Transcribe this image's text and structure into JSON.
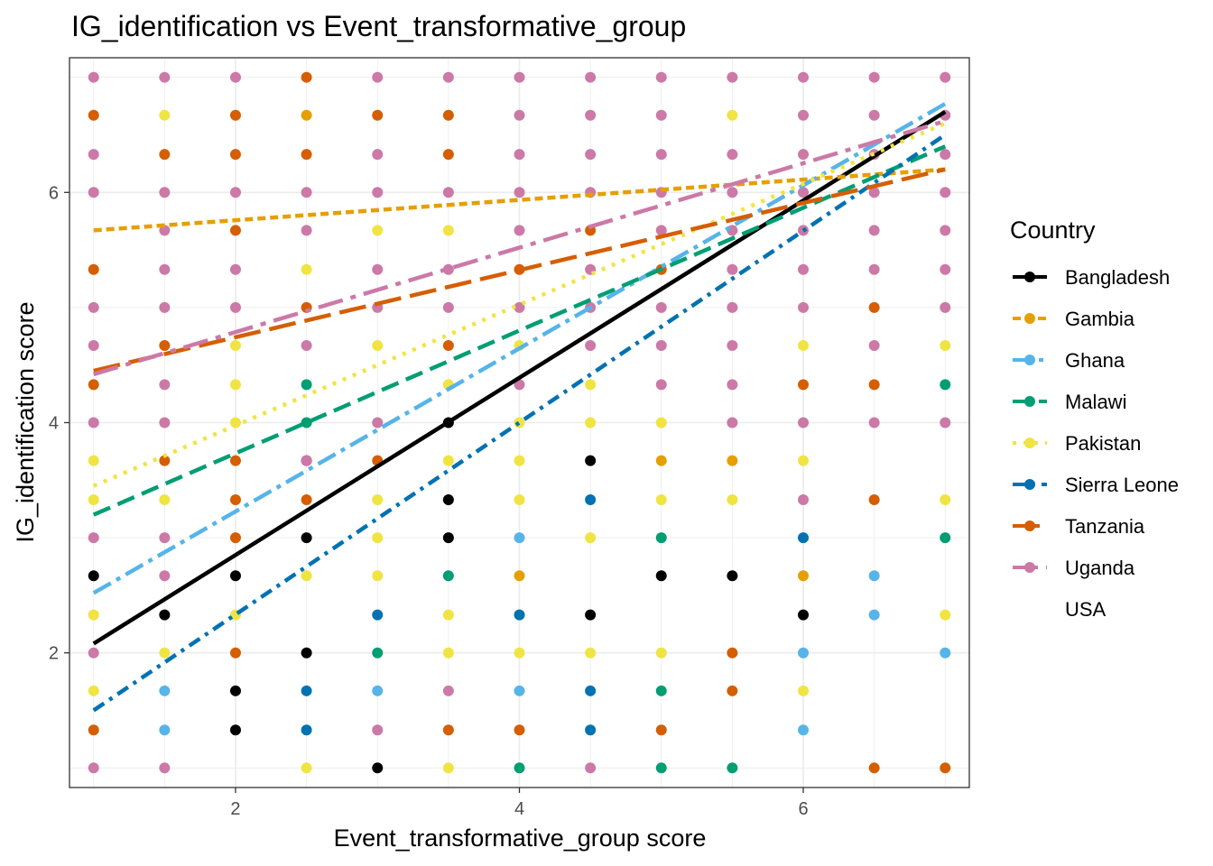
{
  "chart_data": {
    "type": "scatter",
    "title": "IG_identification vs Event_transformative_group",
    "xlabel": "Event_transformative_group score",
    "ylabel": "IG_identification score",
    "xlim": [
      0.83,
      7.17
    ],
    "ylim": [
      0.83,
      7.17
    ],
    "x_ticks": [
      2,
      4,
      6
    ],
    "y_ticks": [
      2,
      4,
      6
    ],
    "grid": true,
    "legend": {
      "title": "Country",
      "position": "right"
    },
    "series": [
      {
        "name": "Bangladesh",
        "color": "#000000",
        "dash": "solid",
        "fit": [
          [
            1,
            2.08
          ],
          [
            7,
            6.7
          ]
        ],
        "points": [
          [
            1,
            2.67
          ],
          [
            1.5,
            2.33
          ],
          [
            2,
            2.67
          ],
          [
            2,
            1.67
          ],
          [
            2,
            1.33
          ],
          [
            2.5,
            3.67
          ],
          [
            2.5,
            3
          ],
          [
            2.5,
            2
          ],
          [
            3,
            1
          ],
          [
            3.5,
            4
          ],
          [
            3.5,
            3.33
          ],
          [
            3.5,
            3
          ],
          [
            4.5,
            3.67
          ],
          [
            4.5,
            2.33
          ],
          [
            5,
            2.67
          ],
          [
            5.5,
            2.67
          ],
          [
            6,
            2.33
          ]
        ]
      },
      {
        "name": "Gambia",
        "color": "#E69F00",
        "dash": "short",
        "fit": [
          [
            1,
            5.67
          ],
          [
            7,
            6.2
          ]
        ],
        "points": [
          [
            2.5,
            6.67
          ],
          [
            4,
            2.67
          ],
          [
            5,
            3.67
          ],
          [
            5.5,
            3.67
          ],
          [
            6,
            2.67
          ]
        ]
      },
      {
        "name": "Ghana",
        "color": "#56B4E9",
        "dash": "dashdot-long",
        "fit": [
          [
            1,
            2.52
          ],
          [
            7,
            6.77
          ]
        ],
        "points": [
          [
            1.5,
            1.67
          ],
          [
            1.5,
            1.33
          ],
          [
            3,
            1.67
          ],
          [
            4,
            3
          ],
          [
            4,
            1.67
          ],
          [
            6,
            2
          ],
          [
            6,
            1.33
          ],
          [
            6.5,
            2.67
          ],
          [
            6.5,
            2.33
          ],
          [
            7,
            2
          ]
        ]
      },
      {
        "name": "Malawi",
        "color": "#009E73",
        "dash": "dashed",
        "fit": [
          [
            1,
            3.2
          ],
          [
            7,
            6.4
          ]
        ],
        "points": [
          [
            2.5,
            4.33
          ],
          [
            2.5,
            4
          ],
          [
            3,
            2
          ],
          [
            3.5,
            2.67
          ],
          [
            4,
            1
          ],
          [
            5,
            3
          ],
          [
            5,
            1.67
          ],
          [
            5,
            1
          ],
          [
            5.5,
            1
          ],
          [
            7,
            4.33
          ],
          [
            7,
            3
          ]
        ]
      },
      {
        "name": "Pakistan",
        "color": "#F0E442",
        "dash": "dotted",
        "fit": [
          [
            1,
            3.45
          ],
          [
            7,
            6.6
          ]
        ],
        "points": [
          [
            1,
            3.67
          ],
          [
            1,
            3.33
          ],
          [
            1,
            2.33
          ],
          [
            1,
            1.67
          ],
          [
            1.5,
            6.67
          ],
          [
            1.5,
            3.33
          ],
          [
            1.5,
            2
          ],
          [
            2,
            4.67
          ],
          [
            2,
            4.33
          ],
          [
            2,
            4
          ],
          [
            2,
            2.33
          ],
          [
            2.5,
            5.33
          ],
          [
            2.5,
            2.67
          ],
          [
            2.5,
            1
          ],
          [
            3,
            5.67
          ],
          [
            3,
            4.67
          ],
          [
            3,
            3.33
          ],
          [
            3,
            3
          ],
          [
            3,
            2.67
          ],
          [
            3.5,
            5.67
          ],
          [
            3.5,
            4.33
          ],
          [
            3.5,
            3.67
          ],
          [
            3.5,
            2.33
          ],
          [
            3.5,
            2
          ],
          [
            3.5,
            1
          ],
          [
            4,
            4.67
          ],
          [
            4,
            4
          ],
          [
            4,
            3.67
          ],
          [
            4,
            3.33
          ],
          [
            4,
            2.33
          ],
          [
            4,
            2
          ],
          [
            4.5,
            4.33
          ],
          [
            4.5,
            4
          ],
          [
            4.5,
            3
          ],
          [
            4.5,
            2
          ],
          [
            5,
            4
          ],
          [
            5,
            3.33
          ],
          [
            5,
            2
          ],
          [
            5.5,
            6.67
          ],
          [
            5.5,
            3.33
          ],
          [
            6,
            4.67
          ],
          [
            6,
            3.67
          ],
          [
            6,
            1.67
          ],
          [
            7,
            4.67
          ],
          [
            7,
            3.33
          ],
          [
            7,
            2.33
          ]
        ]
      },
      {
        "name": "Sierra Leone",
        "color": "#0072B2",
        "dash": "dashdot",
        "fit": [
          [
            1,
            1.5
          ],
          [
            7,
            6.5
          ]
        ],
        "points": [
          [
            2.5,
            1.67
          ],
          [
            2.5,
            1.33
          ],
          [
            3,
            2.33
          ],
          [
            4,
            2.33
          ],
          [
            4.5,
            3.33
          ],
          [
            4.5,
            1.67
          ],
          [
            4.5,
            1.33
          ],
          [
            6,
            3
          ]
        ]
      },
      {
        "name": "Tanzania",
        "color": "#D55E00",
        "dash": "longdash",
        "fit": [
          [
            1,
            4.45
          ],
          [
            7,
            6.2
          ]
        ],
        "points": [
          [
            1,
            6.67
          ],
          [
            1,
            5.33
          ],
          [
            1,
            4.33
          ],
          [
            1,
            1.33
          ],
          [
            1.5,
            6.33
          ],
          [
            1.5,
            4.67
          ],
          [
            1.5,
            3.67
          ],
          [
            2,
            6.67
          ],
          [
            2,
            6.33
          ],
          [
            2,
            5.67
          ],
          [
            2,
            3.67
          ],
          [
            2,
            3.33
          ],
          [
            2,
            3
          ],
          [
            2,
            2
          ],
          [
            2.5,
            7
          ],
          [
            2.5,
            6.33
          ],
          [
            2.5,
            5
          ],
          [
            2.5,
            3.33
          ],
          [
            3,
            6.67
          ],
          [
            3,
            3.67
          ],
          [
            3.5,
            6.67
          ],
          [
            3.5,
            6.33
          ],
          [
            3.5,
            4.67
          ],
          [
            3.5,
            1.33
          ],
          [
            4,
            5.33
          ],
          [
            4,
            1.33
          ],
          [
            4.5,
            5.67
          ],
          [
            5,
            5.33
          ],
          [
            5,
            1.33
          ],
          [
            5.5,
            2
          ],
          [
            5.5,
            1.67
          ],
          [
            6,
            4.33
          ],
          [
            6.5,
            5
          ],
          [
            6.5,
            4.33
          ],
          [
            6.5,
            3.33
          ],
          [
            6.5,
            1
          ],
          [
            7,
            1
          ]
        ]
      },
      {
        "name": "Uganda",
        "color": "#CC79A7",
        "dash": "longdashdot",
        "fit": [
          [
            1,
            4.42
          ],
          [
            7,
            6.62
          ]
        ],
        "points": [
          [
            1,
            7
          ],
          [
            1,
            6.33
          ],
          [
            1,
            6
          ],
          [
            1,
            5
          ],
          [
            1,
            4.67
          ],
          [
            1,
            4
          ],
          [
            1,
            3
          ],
          [
            1,
            2
          ],
          [
            1,
            1
          ],
          [
            1.5,
            7
          ],
          [
            1.5,
            6
          ],
          [
            1.5,
            5.67
          ],
          [
            1.5,
            5.33
          ],
          [
            1.5,
            5
          ],
          [
            1.5,
            4.33
          ],
          [
            1.5,
            4
          ],
          [
            1.5,
            3
          ],
          [
            1.5,
            2.67
          ],
          [
            1.5,
            1
          ],
          [
            2,
            7
          ],
          [
            2,
            6
          ],
          [
            2,
            5.33
          ],
          [
            2,
            5
          ],
          [
            2.5,
            6
          ],
          [
            2.5,
            5.67
          ],
          [
            2.5,
            4.67
          ],
          [
            2.5,
            3.67
          ],
          [
            3,
            7
          ],
          [
            3,
            6.33
          ],
          [
            3,
            6
          ],
          [
            3,
            5.33
          ],
          [
            3,
            5
          ],
          [
            3,
            4
          ],
          [
            3,
            1.33
          ],
          [
            3.5,
            7
          ],
          [
            3.5,
            6
          ],
          [
            3.5,
            5.33
          ],
          [
            3.5,
            5
          ],
          [
            3.5,
            1.67
          ],
          [
            4,
            7
          ],
          [
            4,
            6.67
          ],
          [
            4,
            6.33
          ],
          [
            4,
            6
          ],
          [
            4,
            5.67
          ],
          [
            4,
            5
          ],
          [
            4,
            4.33
          ],
          [
            4.5,
            7
          ],
          [
            4.5,
            6.67
          ],
          [
            4.5,
            6.33
          ],
          [
            4.5,
            6
          ],
          [
            4.5,
            5.33
          ],
          [
            4.5,
            5
          ],
          [
            4.5,
            4.67
          ],
          [
            4.5,
            1
          ],
          [
            5,
            7
          ],
          [
            5,
            6.67
          ],
          [
            5,
            6.33
          ],
          [
            5,
            6
          ],
          [
            5,
            5.67
          ],
          [
            5,
            5
          ],
          [
            5,
            4.67
          ],
          [
            5,
            4.33
          ],
          [
            5.5,
            7
          ],
          [
            5.5,
            6.33
          ],
          [
            5.5,
            6
          ],
          [
            5.5,
            5.67
          ],
          [
            5.5,
            5.33
          ],
          [
            5.5,
            5
          ],
          [
            5.5,
            4.67
          ],
          [
            5.5,
            4.33
          ],
          [
            5.5,
            4
          ],
          [
            6,
            7
          ],
          [
            6,
            6.67
          ],
          [
            6,
            6.33
          ],
          [
            6,
            6
          ],
          [
            6,
            5.67
          ],
          [
            6,
            5.33
          ],
          [
            6,
            5
          ],
          [
            6,
            4
          ],
          [
            6,
            3.33
          ],
          [
            6.5,
            7
          ],
          [
            6.5,
            6.67
          ],
          [
            6.5,
            6.33
          ],
          [
            6.5,
            6
          ],
          [
            6.5,
            5.67
          ],
          [
            6.5,
            5.33
          ],
          [
            6.5,
            4.67
          ],
          [
            6.5,
            4
          ],
          [
            7,
            7
          ],
          [
            7,
            6.67
          ],
          [
            7,
            6.33
          ],
          [
            7,
            6
          ],
          [
            7,
            5.67
          ],
          [
            7,
            5.33
          ],
          [
            7,
            5
          ],
          [
            7,
            4
          ]
        ]
      },
      {
        "name": "USA",
        "color": "#FFFFFF",
        "dash": "none",
        "points": []
      }
    ]
  }
}
